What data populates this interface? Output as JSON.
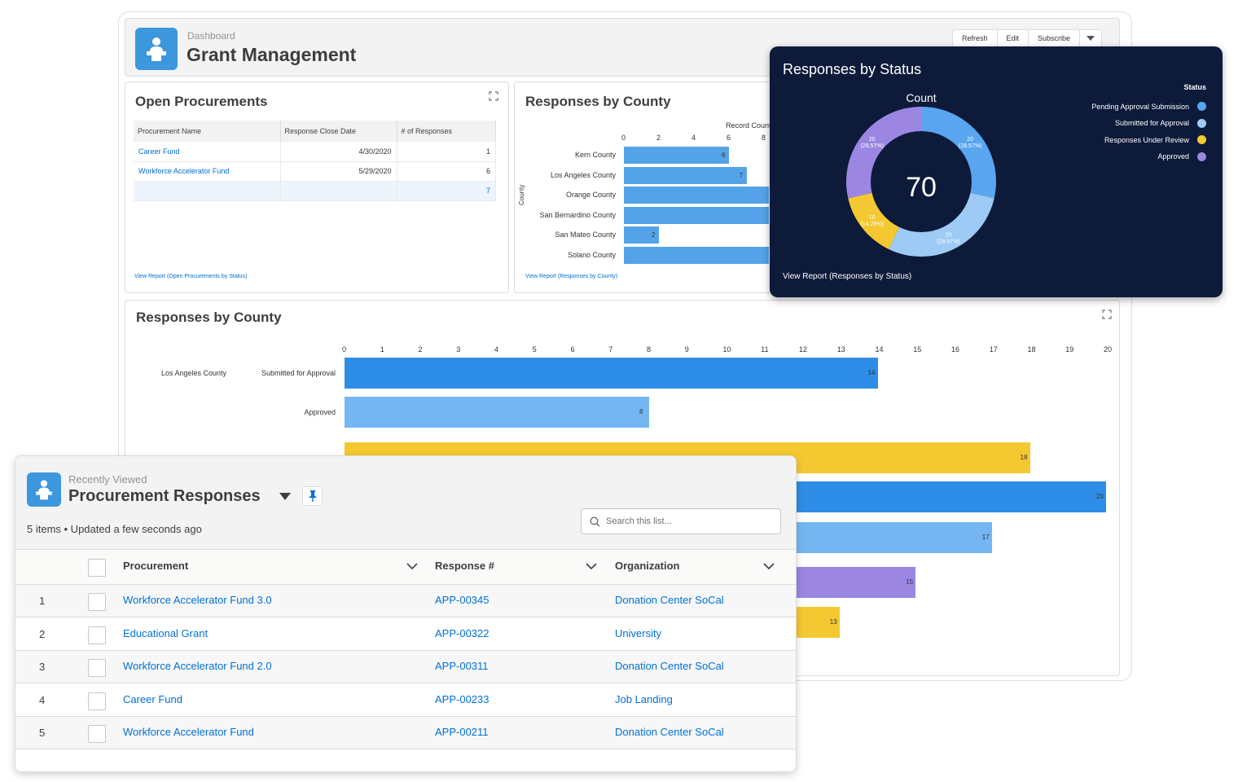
{
  "dashboard": {
    "eyebrow": "Dashboard",
    "title": "Grant Management",
    "buttons": {
      "refresh": "Refresh",
      "edit": "Edit",
      "subscribe": "Subscribe"
    }
  },
  "open_procurements": {
    "title": "Open Procurements",
    "columns": [
      "Procurement Name",
      "Response Close Date",
      "# of Responses"
    ],
    "rows": [
      {
        "name": "Career Fund",
        "date": "4/30/2020",
        "responses": "1"
      },
      {
        "name": "Workforce Accelerator Fund",
        "date": "5/29/2020",
        "responses": "6"
      }
    ],
    "total": "7",
    "link": "View Report (Open Procurements by Status)"
  },
  "county_small": {
    "title": "Responses by County",
    "axis_title": "Record Count",
    "y_axis_title": "County",
    "link": "View Report (Responses by County)",
    "chart_data": {
      "type": "bar",
      "orientation": "horizontal",
      "categories": [
        "Kern County",
        "Los Angeles County",
        "Orange County",
        "San Bernardino County",
        "San Mateo County",
        "Solano County"
      ],
      "values": [
        6,
        7,
        null,
        null,
        2,
        null
      ],
      "xticks": [
        "0",
        "2",
        "4",
        "6",
        "8"
      ]
    }
  },
  "status_donut": {
    "title": "Responses by Status",
    "center_label": "Count",
    "center_value": "70",
    "legend_title": "Status",
    "link": "View Report (Responses by Status)",
    "chart_data": {
      "type": "pie",
      "donut": true,
      "slices": [
        {
          "name": "Pending Approval Submission",
          "value": 20,
          "label": "20",
          "pct": "(28.57%)",
          "color": "#5aa5ef"
        },
        {
          "name": "Submitted for Approval",
          "value": 20,
          "label": "20",
          "pct": "(28.57%)",
          "color": "#9ecbf5"
        },
        {
          "name": "Responses Under Review",
          "value": 10,
          "label": "10",
          "pct": "(14.29%)",
          "color": "#f4c830"
        },
        {
          "name": "Approved",
          "value": 20,
          "label": "20",
          "pct": "(28.57%)",
          "color": "#9b86e2"
        }
      ]
    }
  },
  "county_large": {
    "title": "Responses by County",
    "group_label": "Los Angeles County",
    "chart_data": {
      "type": "bar",
      "orientation": "horizontal",
      "xticks": [
        "0",
        "1",
        "2",
        "3",
        "4",
        "5",
        "6",
        "7",
        "8",
        "9",
        "10",
        "11",
        "12",
        "13",
        "14",
        "15",
        "16",
        "17",
        "18",
        "19",
        "20"
      ],
      "xlim": [
        0,
        20
      ],
      "bars": [
        {
          "label": "Submitted for Approval",
          "value": 14,
          "color": "#2e8de6"
        },
        {
          "label": "Approved",
          "value": 8,
          "color": "#74b6f2"
        },
        {
          "label": "",
          "value": 18,
          "color": "#f4c830"
        },
        {
          "label": "",
          "value": 20,
          "color": "#2e8de6"
        },
        {
          "label": "",
          "value": 17,
          "color": "#74b6f2"
        },
        {
          "label": "",
          "value": 15,
          "color": "#9b86e2"
        },
        {
          "label": "",
          "value": 13,
          "color": "#f4c830"
        }
      ]
    }
  },
  "list_view": {
    "eyebrow": "Recently Viewed",
    "title": "Procurement Responses",
    "meta": "5 items • Updated a few seconds ago",
    "search_placeholder": "Search this list...",
    "columns": {
      "procurement": "Procurement",
      "response": "Response #",
      "organization": "Organization"
    },
    "rows": [
      {
        "num": "1",
        "procurement": "Workforce Accelerator Fund 3.0",
        "response": "APP-00345",
        "organization": "Donation Center SoCal"
      },
      {
        "num": "2",
        "procurement": "Educational Grant",
        "response": "APP-00322",
        "organization": "University"
      },
      {
        "num": "3",
        "procurement": "Workforce Accelerator Fund 2.0",
        "response": "APP-00311",
        "organization": "Donation Center SoCal"
      },
      {
        "num": "4",
        "procurement": "Career Fund",
        "response": "APP-00233",
        "organization": "Job Landing"
      },
      {
        "num": "5",
        "procurement": "Workforce Accelerator Fund",
        "response": "APP-00211",
        "organization": "Donation Center SoCal"
      }
    ]
  }
}
